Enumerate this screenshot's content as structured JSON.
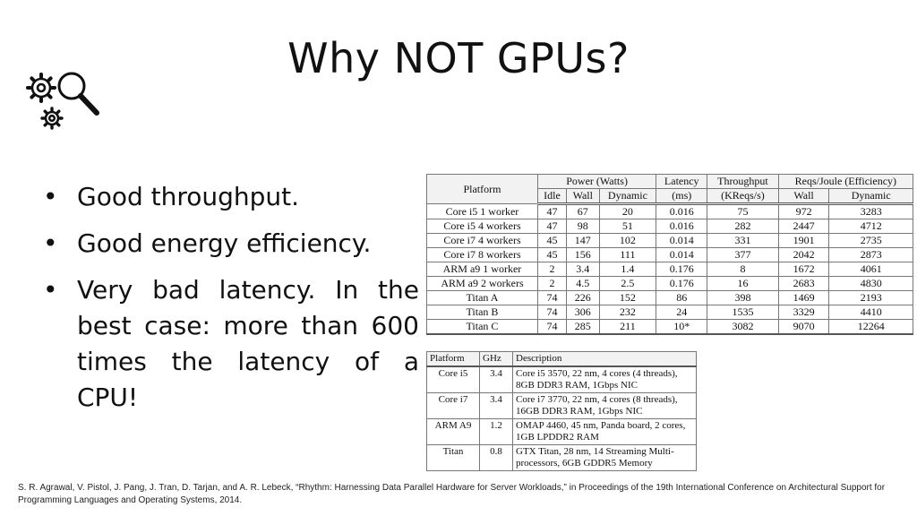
{
  "slide": {
    "title": "Why NOT GPUs?",
    "logo_icon": "gears-magnifier-icon",
    "bullets": [
      "Good throughput.",
      "Good energy efficiency.",
      "Very bad latency. In the best case: more than 600 times the latency of a CPU!"
    ],
    "citation": "S. R. Agrawal, V. Pistol, J. Pang, J. Tran, D. Tarjan, and A. R. Lebeck, “Rhythm: Harnessing Data Parallel Hardware for Server Workloads,” in Proceedings of the 19th International Conference on Architectural Support for Programming Languages and Operating Systems, 2014."
  },
  "table1": {
    "h_platform": "Platform",
    "h_power": "Power (Watts)",
    "h_latency": "Latency",
    "h_throughput": "Throughput",
    "h_reqs": "Reqs/Joule (Efficiency)",
    "h_idle": "Idle",
    "h_wall": "Wall",
    "h_dynamic": "Dynamic",
    "h_ms": "(ms)",
    "h_kreqs": "(KReqs/s)",
    "h_wall2": "Wall",
    "h_dynamic2": "Dynamic",
    "rows": [
      [
        "Core i5 1 worker",
        "47",
        "67",
        "20",
        "0.016",
        "75",
        "972",
        "3283"
      ],
      [
        "Core i5 4 workers",
        "47",
        "98",
        "51",
        "0.016",
        "282",
        "2447",
        "4712"
      ],
      [
        "Core i7 4 workers",
        "45",
        "147",
        "102",
        "0.014",
        "331",
        "1901",
        "2735"
      ],
      [
        "Core i7 8 workers",
        "45",
        "156",
        "111",
        "0.014",
        "377",
        "2042",
        "2873"
      ],
      [
        "ARM a9 1 worker",
        "2",
        "3.4",
        "1.4",
        "0.176",
        "8",
        "1672",
        "4061"
      ],
      [
        "ARM a9 2 workers",
        "2",
        "4.5",
        "2.5",
        "0.176",
        "16",
        "2683",
        "4830"
      ],
      [
        "Titan A",
        "74",
        "226",
        "152",
        "86",
        "398",
        "1469",
        "2193"
      ],
      [
        "Titan B",
        "74",
        "306",
        "232",
        "24",
        "1535",
        "3329",
        "4410"
      ],
      [
        "Titan C",
        "74",
        "285",
        "211",
        "10*",
        "3082",
        "9070",
        "12264"
      ]
    ]
  },
  "table2": {
    "h_platform": "Platform",
    "h_ghz": "GHz",
    "h_desc": "Description",
    "rows": [
      [
        "Core i5",
        "3.4",
        "Core i5 3570, 22 nm, 4 cores (4 threads), 8GB DDR3 RAM, 1Gbps NIC"
      ],
      [
        "Core i7",
        "3.4",
        "Core i7 3770, 22 nm, 4 cores (8 threads), 16GB DDR3 RAM, 1Gbps NIC"
      ],
      [
        "ARM A9",
        "1.2",
        "OMAP 4460, 45 nm, Panda board, 2 cores, 1GB LPDDR2 RAM"
      ],
      [
        "Titan",
        "0.8",
        "GTX Titan, 28 nm, 14 Streaming Multi-processors, 6GB GDDR5 Memory"
      ]
    ]
  }
}
